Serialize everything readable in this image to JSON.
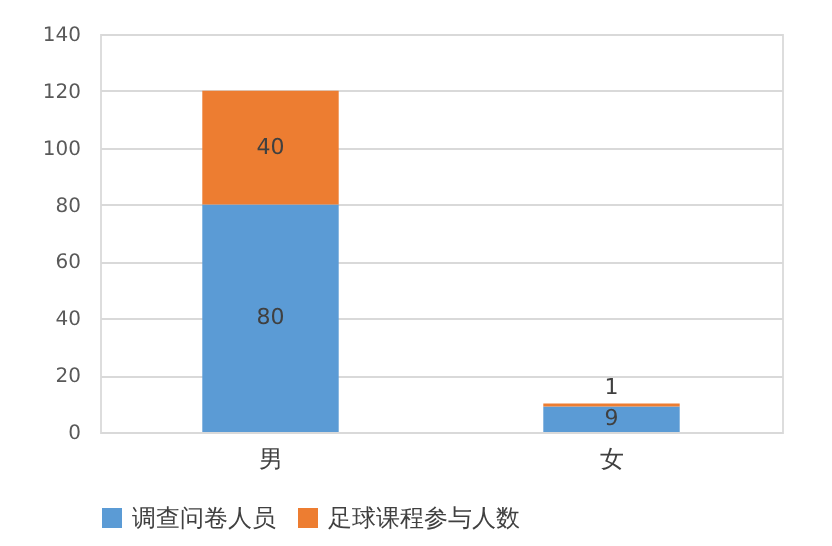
{
  "chart_data": {
    "type": "bar",
    "stacked": true,
    "categories": [
      "男",
      "女"
    ],
    "series": [
      {
        "name": "调查问卷人员",
        "color": "#5b9bd5",
        "values": [
          80,
          9
        ]
      },
      {
        "name": "足球课程参与人数",
        "color": "#ed7d31",
        "values": [
          40,
          1
        ]
      }
    ],
    "ylim": [
      0,
      140
    ],
    "yticks": [
      0,
      20,
      40,
      60,
      80,
      100,
      120,
      140
    ],
    "grid": "y",
    "legend": "bottom",
    "data_labels": true
  }
}
